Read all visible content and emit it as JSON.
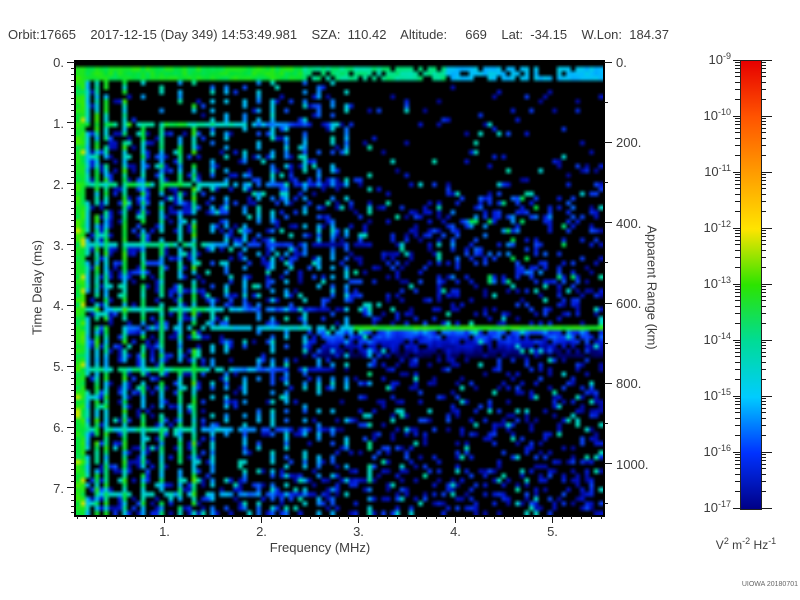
{
  "header": {
    "text": "Orbit:17665    2017-12-15 (Day 349) 14:53:49.981    SZA:  110.42    Altitude:     669    Lat:  -34.15    W.Lon:  184.37"
  },
  "watermark": "UIOWA 20180701",
  "chart_data": {
    "type": "heatmap",
    "description": "Radar sounder ionogram: received spectral density vs frequency (MHz) and time delay (ms); black background, deep-blue noise speckle, green/cyan echo traces",
    "xlabel": "Frequency (MHz)",
    "ylabel": "Time Delay (ms)",
    "ylabel_right": "Apparent Range (km)",
    "x_range_mhz": [
      0.08,
      5.52
    ],
    "y_range_ms": [
      0,
      7.44
    ],
    "right_axis_range_km": [
      0,
      1127
    ],
    "x_major_ticks": [
      "1.",
      "2.",
      "3.",
      "4.",
      "5."
    ],
    "x_major_tick_values": [
      1,
      2,
      3,
      4,
      5
    ],
    "x_minor_step_mhz": 0.1,
    "y_major_ticks": [
      "0.",
      "1.",
      "2.",
      "3.",
      "4.",
      "5.",
      "6.",
      "7."
    ],
    "y_major_tick_values": [
      0,
      1,
      2,
      3,
      4,
      5,
      6,
      7
    ],
    "y_minor_step_ms": 0.1,
    "right_axis_ticks": [
      "0.",
      "200.",
      "400.",
      "600.",
      "800.",
      "1000."
    ],
    "right_axis_tick_values": [
      0,
      200,
      400,
      600,
      800,
      1000
    ],
    "right_axis_minor_step_km": 100,
    "grid": false,
    "background_color": "#000000",
    "colorbar": {
      "scale": "log10",
      "tick_exponents": [
        "-9",
        "-10",
        "-11",
        "-12",
        "-13",
        "-14",
        "-15",
        "-16",
        "-17"
      ],
      "unit_parts": [
        {
          "t": "V",
          "sup": false
        },
        {
          "t": "2",
          "sup": true
        },
        {
          "t": " m",
          "sup": false
        },
        {
          "t": "-2",
          "sup": true
        },
        {
          "t": " Hz",
          "sup": false
        },
        {
          "t": "-1",
          "sup": true
        }
      ],
      "gradient": [
        {
          "color": "#e60000",
          "pct": 0
        },
        {
          "color": "#ff5400",
          "pct": 12.5
        },
        {
          "color": "#ff9c00",
          "pct": 25
        },
        {
          "color": "#ffe400",
          "pct": 37.5
        },
        {
          "color": "#2ce400",
          "pct": 50
        },
        {
          "color": "#00dc96",
          "pct": 62.5
        },
        {
          "color": "#00ccff",
          "pct": 75
        },
        {
          "color": "#0032ff",
          "pct": 87.5
        },
        {
          "color": "#000086",
          "pct": 100
        }
      ]
    },
    "features": {
      "first_reflection_band_ms": 0.2,
      "surface_echo_delay_ms": 4.4,
      "surface_echo_range_km": 663,
      "saturated_low_freq_column_mhz": 0.12,
      "electron_plasma_harmonics_mhz": [
        0.15,
        0.3,
        0.41,
        0.56,
        0.77,
        0.95,
        1.13,
        1.31
      ],
      "weak_harmonics_mhz": [
        1.49,
        1.64,
        1.8,
        1.95,
        2.11,
        2.26,
        2.42,
        2.57,
        2.73,
        2.88
      ],
      "late_harmonic_mhz": 3.12,
      "electron_cyclotron_echoes_ms": [
        1.0,
        2.0,
        3.0,
        4.05,
        5.05,
        6.05,
        7.1
      ],
      "noise_floor_color": "#0000c8"
    }
  }
}
